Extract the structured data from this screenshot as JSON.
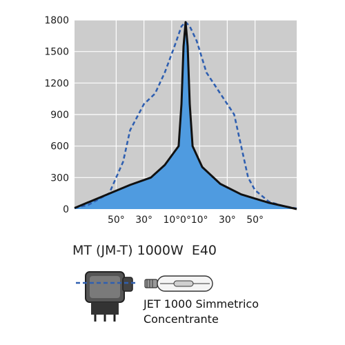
{
  "chart_data": {
    "type": "line",
    "x_tick_labels": [
      "50°",
      "30°",
      "10°",
      "0°",
      "10°",
      "30°",
      "50°"
    ],
    "x_tick_angles": [
      -50,
      -30,
      -10,
      0,
      10,
      30,
      50
    ],
    "x_range_deg": [
      -80,
      80
    ],
    "y_ticks": [
      0,
      300,
      600,
      900,
      1200,
      1500,
      1800
    ],
    "ylim": [
      0,
      1800
    ],
    "grid": true,
    "series": [
      {
        "style": "solid-filled",
        "color": "#111111",
        "fill": "#4f9be0",
        "points": [
          [
            -80,
            10
          ],
          [
            -60,
            120
          ],
          [
            -40,
            230
          ],
          [
            -25,
            300
          ],
          [
            -15,
            420
          ],
          [
            -5,
            600
          ],
          [
            -3,
            1000
          ],
          [
            -1.5,
            1550
          ],
          [
            0,
            1780
          ],
          [
            1.5,
            1550
          ],
          [
            3,
            1000
          ],
          [
            5,
            600
          ],
          [
            12,
            400
          ],
          [
            25,
            240
          ],
          [
            40,
            140
          ],
          [
            60,
            60
          ],
          [
            70,
            30
          ],
          [
            80,
            0
          ]
        ]
      },
      {
        "style": "dashed",
        "color": "#2f5fb0",
        "points": [
          [
            -80,
            10
          ],
          [
            -70,
            40
          ],
          [
            -55,
            150
          ],
          [
            -45,
            450
          ],
          [
            -40,
            750
          ],
          [
            -30,
            1000
          ],
          [
            -22,
            1100
          ],
          [
            -15,
            1300
          ],
          [
            -8,
            1550
          ],
          [
            -3,
            1740
          ],
          [
            0,
            1780
          ],
          [
            3,
            1740
          ],
          [
            8,
            1600
          ],
          [
            15,
            1300
          ],
          [
            25,
            1100
          ],
          [
            35,
            900
          ],
          [
            40,
            600
          ],
          [
            45,
            300
          ],
          [
            50,
            180
          ],
          [
            60,
            70
          ],
          [
            70,
            30
          ],
          [
            80,
            5
          ]
        ]
      }
    ]
  },
  "product": {
    "model": "MT (JM-T) 1000W  E40",
    "lamp_line1": "JET 1000 Simmetrico",
    "lamp_line2": "Concentrante"
  },
  "colors": {
    "plot_background": "#cccccc",
    "grid": "#ffffff",
    "fill": "#4f9be0",
    "solid_curve": "#111111",
    "dashed_curve": "#2f5fb0"
  },
  "icons": {
    "fixture": "floodlight-fixture-icon",
    "lamp": "metal-halide-lamp-icon"
  }
}
